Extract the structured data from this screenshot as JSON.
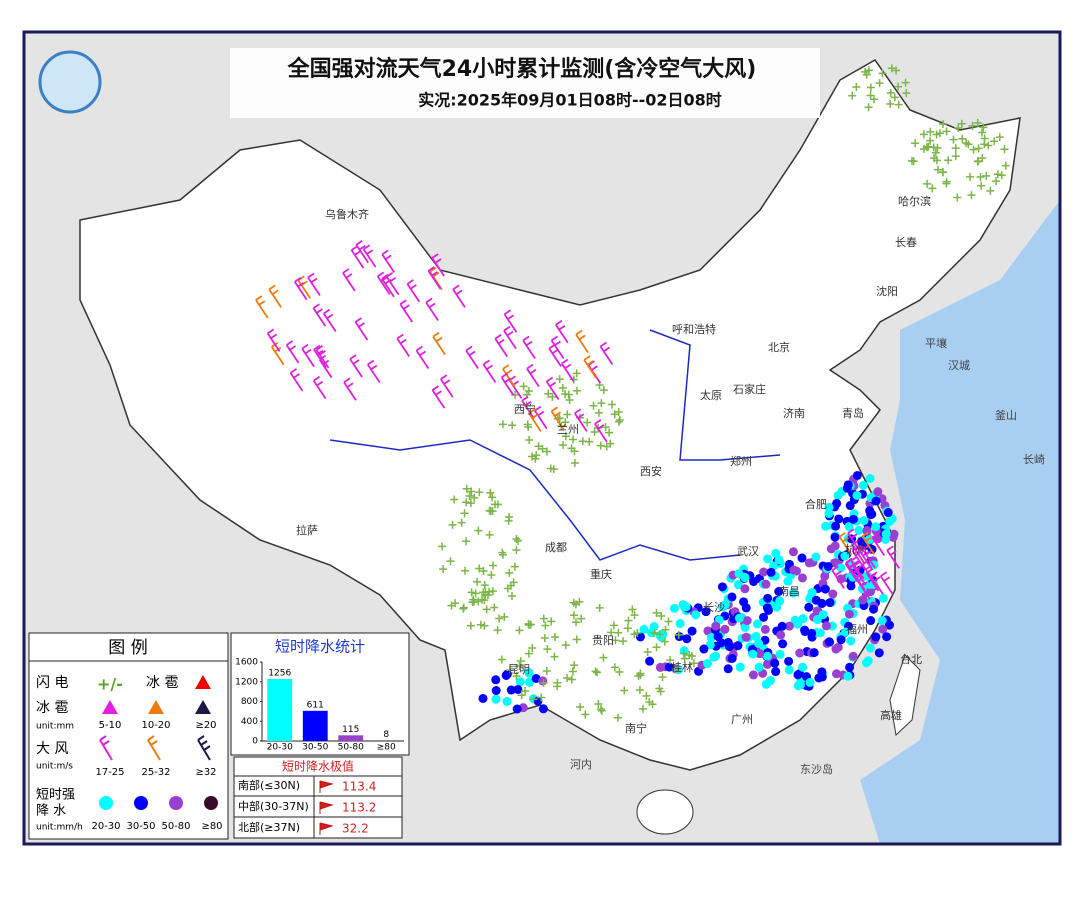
{
  "header": {
    "title": "全国强对流天气24小时累计监测(含冷空气大风)",
    "subtitle": "实况:2025年09月01日08时--02日08时"
  },
  "places": [
    "乌鲁木齐",
    "哈尔滨",
    "长春",
    "沈阳",
    "呼和浩特",
    "北京",
    "太原",
    "石家庄",
    "济南",
    "青岛",
    "西宁",
    "兰州",
    "西安",
    "郑州",
    "合肥",
    "武汉",
    "成都",
    "重庆",
    "拉萨",
    "贵阳",
    "长沙",
    "南昌",
    "昆明",
    "南宁",
    "桂林",
    "广州",
    "杭州",
    "福州",
    "台北",
    "高雄"
  ],
  "foreign_places": [
    "平壤",
    "汉城",
    "釜山",
    "长崎",
    "河内",
    "东沙岛"
  ],
  "legend": {
    "title": "图 例",
    "lightning": "闪 电",
    "hail_symbol": "冰 雹",
    "hail": {
      "label": "冰 雹",
      "unit": "unit:mm",
      "classes": [
        "5-10",
        "10-20",
        "≥20"
      ]
    },
    "wind": {
      "label": "大 风",
      "unit": "unit:m/s",
      "classes": [
        "17-25",
        "25-32",
        "≥32"
      ]
    },
    "rain": {
      "label": [
        "短时强",
        "降 水"
      ],
      "unit": "unit:mm/h",
      "classes": [
        "20-30",
        "30-50",
        "50-80",
        "≥80"
      ]
    }
  },
  "chart_data": {
    "type": "bar",
    "title": "短时降水统计",
    "categories": [
      "20-30",
      "30-50",
      "50-80",
      "≥80"
    ],
    "values": [
      1256,
      611,
      115,
      8
    ],
    "colors": [
      "#00ffff",
      "#0000ff",
      "#9a40d0",
      "#3a0a2a"
    ],
    "ylim": [
      0,
      1600
    ],
    "yticks": [
      0,
      400,
      800,
      1200,
      1600
    ]
  },
  "extremes": {
    "title": "短时降水极值",
    "rows": [
      {
        "region": "南部(≤30N)",
        "value": 113.4
      },
      {
        "region": "中部(30-37N)",
        "value": 113.2
      },
      {
        "region": "北部(≥37N)",
        "value": 32.2
      }
    ]
  }
}
